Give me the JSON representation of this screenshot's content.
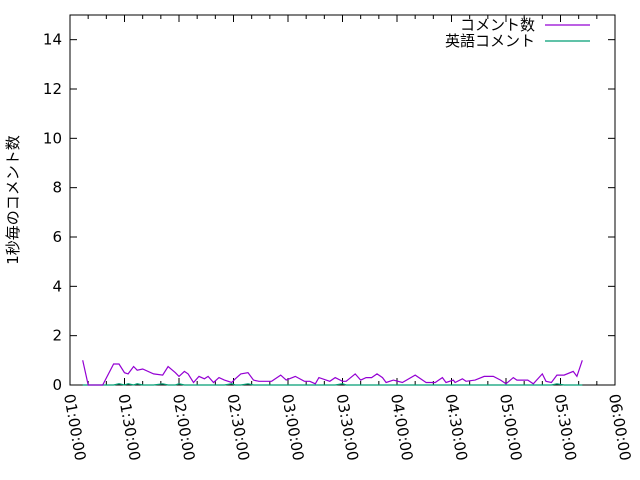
{
  "chart_data": {
    "type": "line",
    "title": "",
    "xlabel": "",
    "ylabel": "1秒毎のコメント数",
    "xlim": [
      "01:00:00",
      "06:00:00"
    ],
    "ylim": [
      0,
      15
    ],
    "xticks": [
      "01:00:00",
      "01:30:00",
      "02:00:00",
      "02:30:00",
      "03:00:00",
      "03:30:00",
      "04:00:00",
      "04:30:00",
      "05:00:00",
      "05:30:00",
      "06:00:00"
    ],
    "yticks": [
      0,
      2,
      4,
      6,
      8,
      10,
      12,
      14
    ],
    "grid": false,
    "legend_position": "top-right",
    "x": [
      "01:07",
      "01:10",
      "01:18",
      "01:24",
      "01:27",
      "01:30",
      "01:32",
      "01:35",
      "01:37",
      "01:40",
      "01:46",
      "01:51",
      "01:54",
      "01:58",
      "02:00",
      "02:03",
      "02:05",
      "02:08",
      "02:11",
      "02:14",
      "02:16",
      "02:19",
      "02:22",
      "02:25",
      "02:29",
      "02:31",
      "02:34",
      "02:38",
      "02:41",
      "02:44",
      "02:51",
      "02:56",
      "02:59",
      "03:04",
      "03:09",
      "03:12",
      "03:15",
      "03:17",
      "03:23",
      "03:26",
      "03:30",
      "03:32",
      "03:37",
      "03:40",
      "03:43",
      "03:46",
      "03:49",
      "03:52",
      "03:54",
      "03:58",
      "04:03",
      "04:10",
      "04:16",
      "04:21",
      "04:25",
      "04:27",
      "04:31",
      "04:32",
      "04:36",
      "04:38",
      "04:43",
      "04:48",
      "04:53",
      "04:57",
      "05:00",
      "05:04",
      "05:06",
      "05:12",
      "05:15",
      "05:20",
      "05:22",
      "05:25",
      "05:28",
      "05:32",
      "05:37",
      "05:39",
      "05:42"
    ],
    "series": [
      {
        "name": "コメント数",
        "color": "#9400d3",
        "values": [
          1.0,
          0,
          0,
          0.85,
          0.85,
          0.5,
          0.45,
          0.75,
          0.6,
          0.65,
          0.45,
          0.4,
          0.75,
          0.5,
          0.35,
          0.55,
          0.45,
          0.1,
          0.35,
          0.25,
          0.35,
          0.1,
          0.3,
          0.2,
          0.1,
          0.25,
          0.45,
          0.5,
          0.2,
          0.15,
          0.15,
          0.4,
          0.2,
          0.35,
          0.15,
          0.15,
          0.05,
          0.3,
          0.15,
          0.3,
          0.15,
          0.15,
          0.45,
          0.2,
          0.3,
          0.3,
          0.45,
          0.3,
          0.1,
          0.2,
          0.1,
          0.4,
          0.1,
          0.1,
          0.3,
          0.1,
          0.2,
          0.1,
          0.25,
          0.15,
          0.2,
          0.35,
          0.35,
          0.2,
          0.05,
          0.3,
          0.2,
          0.2,
          0.05,
          0.45,
          0.15,
          0.1,
          0.4,
          0.4,
          0.55,
          0.35,
          1.0
        ]
      },
      {
        "name": "英語コメント",
        "color": "#009e73",
        "values": [
          0,
          0,
          0,
          0,
          0.05,
          0,
          0.05,
          0,
          0.05,
          0,
          0,
          0.05,
          0,
          0,
          0.05,
          0,
          0,
          0,
          0,
          0,
          0,
          0,
          0,
          0,
          0.05,
          0,
          0,
          0.05,
          0,
          0,
          0,
          0,
          0,
          0,
          0,
          0,
          0,
          0,
          0,
          0,
          0.05,
          0,
          0,
          0,
          0,
          0,
          0,
          0,
          0,
          0,
          0,
          0,
          0,
          0,
          0,
          0,
          0,
          0,
          0,
          0,
          0,
          0,
          0,
          0,
          0,
          0,
          0,
          0,
          0,
          0,
          0,
          0,
          0.05,
          0,
          0,
          0,
          0
        ]
      }
    ]
  }
}
